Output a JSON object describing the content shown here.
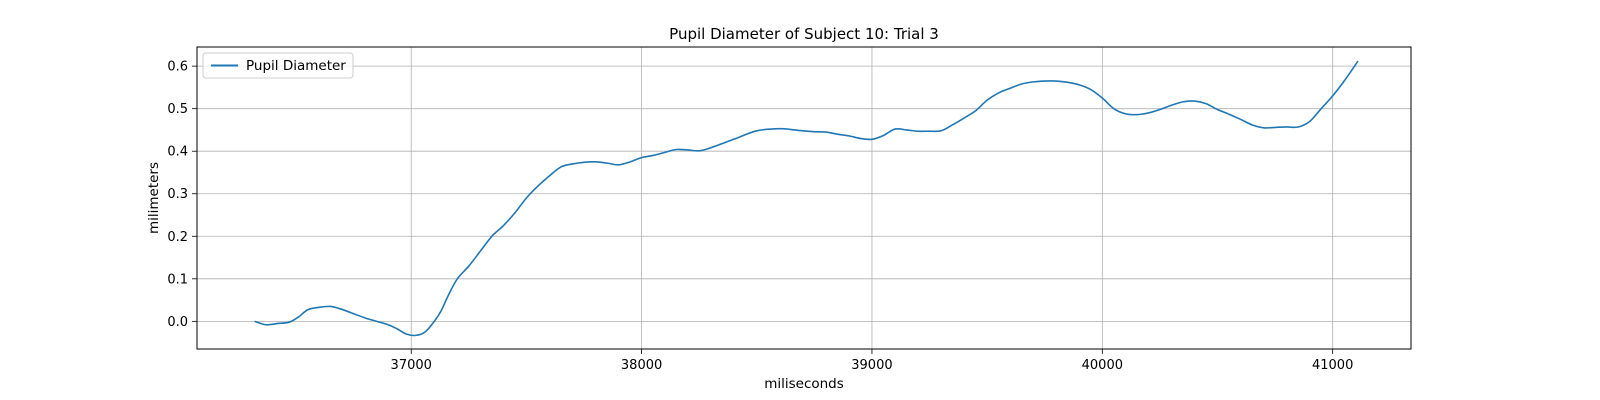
{
  "chart_data": {
    "type": "line",
    "title": "Pupil Diameter of Subject 10: Trial 3",
    "xlabel": "miliseconds",
    "ylabel": "milimeters",
    "xlim": [
      36070,
      41340
    ],
    "ylim": [
      -0.065,
      0.645
    ],
    "xticks": [
      37000,
      38000,
      39000,
      40000,
      41000
    ],
    "yticks": [
      0.0,
      0.1,
      0.2,
      0.3,
      0.4,
      0.5,
      0.6
    ],
    "ytick_labels": [
      "0.0",
      "0.1",
      "0.2",
      "0.3",
      "0.4",
      "0.5",
      "0.6"
    ],
    "grid": true,
    "legend": {
      "placement": "upper-left",
      "entries": [
        "Pupil Diameter"
      ]
    },
    "series": [
      {
        "name": "Pupil Diameter",
        "color": "#1f77b4",
        "x": [
          36320,
          36370,
          36420,
          36470,
          36510,
          36550,
          36600,
          36650,
          36700,
          36750,
          36800,
          36850,
          36900,
          36940,
          36980,
          37020,
          37060,
          37100,
          37130,
          37160,
          37200,
          37250,
          37300,
          37350,
          37400,
          37450,
          37500,
          37550,
          37600,
          37650,
          37700,
          37750,
          37800,
          37850,
          37900,
          37950,
          38000,
          38050,
          38100,
          38150,
          38200,
          38250,
          38300,
          38400,
          38500,
          38600,
          38650,
          38700,
          38750,
          38800,
          38850,
          38900,
          38950,
          39000,
          39050,
          39100,
          39150,
          39200,
          39250,
          39300,
          39350,
          39400,
          39450,
          39500,
          39550,
          39600,
          39650,
          39700,
          39750,
          39800,
          39850,
          39900,
          39950,
          40000,
          40050,
          40100,
          40150,
          40200,
          40250,
          40300,
          40350,
          40400,
          40450,
          40500,
          40550,
          40600,
          40650,
          40700,
          40750,
          40800,
          40850,
          40900,
          40950,
          41000,
          41050,
          41110
        ],
        "y": [
          0.0,
          -0.008,
          -0.005,
          -0.002,
          0.01,
          0.027,
          0.033,
          0.035,
          0.028,
          0.018,
          0.008,
          0.0,
          -0.008,
          -0.018,
          -0.03,
          -0.033,
          -0.025,
          0.0,
          0.025,
          0.06,
          0.1,
          0.13,
          0.165,
          0.2,
          0.225,
          0.255,
          0.29,
          0.318,
          0.342,
          0.363,
          0.37,
          0.374,
          0.375,
          0.372,
          0.368,
          0.375,
          0.385,
          0.39,
          0.397,
          0.404,
          0.403,
          0.401,
          0.408,
          0.428,
          0.448,
          0.453,
          0.451,
          0.448,
          0.446,
          0.445,
          0.44,
          0.436,
          0.43,
          0.428,
          0.437,
          0.452,
          0.45,
          0.447,
          0.447,
          0.448,
          0.462,
          0.478,
          0.495,
          0.52,
          0.537,
          0.548,
          0.558,
          0.563,
          0.565,
          0.565,
          0.562,
          0.556,
          0.545,
          0.525,
          0.5,
          0.488,
          0.486,
          0.49,
          0.498,
          0.508,
          0.516,
          0.518,
          0.512,
          0.498,
          0.487,
          0.475,
          0.462,
          0.455,
          0.456,
          0.457,
          0.457,
          0.47,
          0.5,
          0.53,
          0.565,
          0.612
        ]
      }
    ]
  }
}
